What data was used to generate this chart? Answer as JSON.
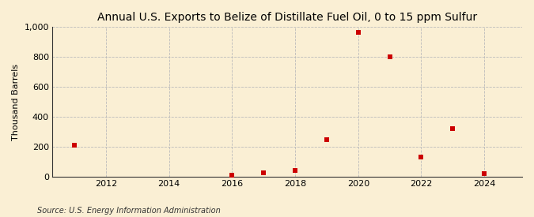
{
  "title": "Annual U.S. Exports to Belize of Distillate Fuel Oil, 0 to 15 ppm Sulfur",
  "ylabel": "Thousand Barrels",
  "source": "Source: U.S. Energy Information Administration",
  "years": [
    2011,
    2016,
    2017,
    2018,
    2019,
    2020,
    2021,
    2022,
    2023,
    2024
  ],
  "values": [
    210,
    8,
    25,
    40,
    248,
    963,
    800,
    130,
    320,
    20
  ],
  "xlim": [
    2010.3,
    2025.2
  ],
  "ylim": [
    0,
    1000
  ],
  "yticks": [
    0,
    200,
    400,
    600,
    800,
    1000
  ],
  "ytick_labels": [
    "0",
    "200",
    "400",
    "600",
    "800",
    "1,000"
  ],
  "xticks": [
    2012,
    2014,
    2016,
    2018,
    2020,
    2022,
    2024
  ],
  "marker_color": "#cc0000",
  "marker_size": 5,
  "background_color": "#faefd4",
  "grid_color": "#bbbbbb",
  "title_fontsize": 10,
  "axis_fontsize": 8,
  "source_fontsize": 7
}
